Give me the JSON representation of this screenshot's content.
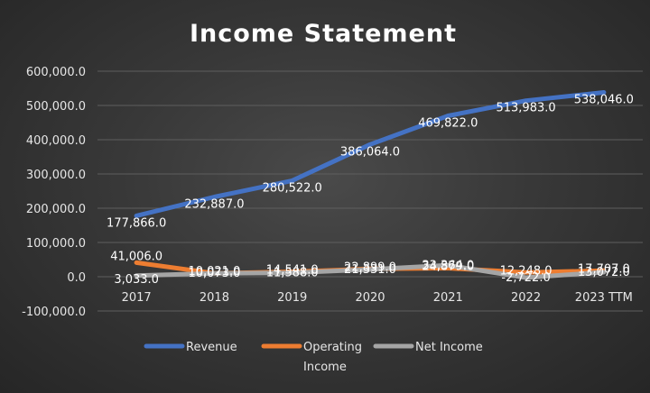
{
  "chart_data": {
    "type": "line",
    "title": "Income Statement",
    "categories": [
      "2017",
      "2018",
      "2019",
      "2020",
      "2021",
      "2022",
      "2023 TTM"
    ],
    "ylim": [
      -100000,
      600000
    ],
    "yticks": [
      -100000,
      0,
      100000,
      200000,
      300000,
      400000,
      500000,
      600000
    ],
    "ytick_labels": [
      "-100,000.0",
      "0.0",
      "100,000.0",
      "200,000.0",
      "300,000.0",
      "400,000.0",
      "500,000.0",
      "600,000.0"
    ],
    "grid": true,
    "legend_position": "bottom",
    "series": [
      {
        "name": "Revenue",
        "color": "#4472C4",
        "values": [
          177866,
          232887,
          280522,
          386064,
          469822,
          513983,
          538046
        ],
        "labels": [
          "177,866.0",
          "232,887.0",
          "280,522.0",
          "386,064.0",
          "469,822.0",
          "513,983.0",
          "538,046.0"
        ]
      },
      {
        "name": "Operating Income",
        "legend_lines": [
          "Operating",
          "Income"
        ],
        "color": "#ED7D31",
        "values": [
          41006,
          10021,
          14541,
          22899,
          24879,
          12248,
          17707
        ],
        "labels": [
          "41,006.0",
          "10,021.0",
          "14,541.0",
          "22,899.0",
          "24,879.0",
          "12,248.0",
          "17,707.0"
        ]
      },
      {
        "name": "Net Income",
        "color": "#A5A5A5",
        "values": [
          3033,
          10073,
          11588,
          21331,
          33364,
          -2722,
          13072
        ],
        "labels": [
          "3,033.0",
          "10,073.0",
          "11,588.0",
          "21,331.0",
          "33,364.0",
          "-2,722.0",
          "13,072.0"
        ]
      }
    ]
  }
}
